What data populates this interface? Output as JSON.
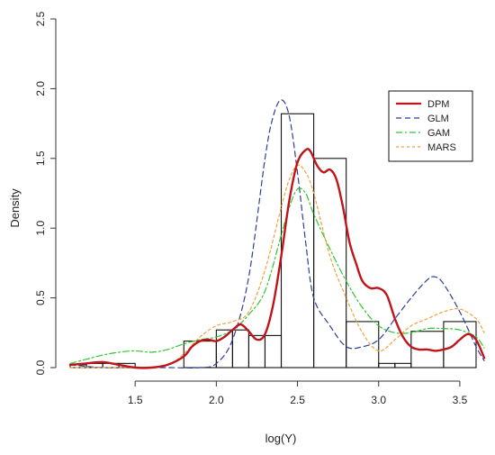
{
  "chart_data": {
    "type": "histogram-with-density-lines",
    "xlabel": "log(Y)",
    "ylabel": "Density",
    "xlim": [
      1.1,
      3.65
    ],
    "ylim": [
      0,
      2.5
    ],
    "x_ticks": [
      1.5,
      2.0,
      2.5,
      3.0,
      3.5
    ],
    "y_ticks": [
      0.0,
      0.5,
      1.0,
      1.5,
      2.0,
      2.5
    ],
    "x_tick_labels": [
      "1.5",
      "2.0",
      "2.5",
      "3.0",
      "3.5"
    ],
    "y_tick_labels": [
      "0.0",
      "0.5",
      "1.0",
      "1.5",
      "2.0",
      "2.5"
    ],
    "grid": false,
    "legend_position": "top-right",
    "histogram": {
      "bins": [
        {
          "x0": 1.1,
          "x1": 1.2,
          "height": 0.02
        },
        {
          "x0": 1.2,
          "x1": 1.3,
          "height": 0.03
        },
        {
          "x0": 1.3,
          "x1": 1.4,
          "height": 0.03
        },
        {
          "x0": 1.4,
          "x1": 1.5,
          "height": 0.03
        },
        {
          "x0": 1.5,
          "x1": 1.6,
          "height": 0.0
        },
        {
          "x0": 1.6,
          "x1": 1.7,
          "height": 0.0
        },
        {
          "x0": 1.7,
          "x1": 1.8,
          "height": 0.0
        },
        {
          "x0": 1.8,
          "x1": 2.0,
          "height": 0.19
        },
        {
          "x0": 2.0,
          "x1": 2.1,
          "height": 0.27
        },
        {
          "x0": 2.1,
          "x1": 2.2,
          "height": 0.27
        },
        {
          "x0": 2.2,
          "x1": 2.3,
          "height": 0.23
        },
        {
          "x0": 2.3,
          "x1": 2.4,
          "height": 0.23
        },
        {
          "x0": 2.4,
          "x1": 2.6,
          "height": 1.82
        },
        {
          "x0": 2.6,
          "x1": 2.8,
          "height": 1.5
        },
        {
          "x0": 2.8,
          "x1": 3.0,
          "height": 0.33
        },
        {
          "x0": 3.0,
          "x1": 3.1,
          "height": 0.03
        },
        {
          "x0": 3.1,
          "x1": 3.2,
          "height": 0.03
        },
        {
          "x0": 3.2,
          "x1": 3.4,
          "height": 0.26
        },
        {
          "x0": 3.4,
          "x1": 3.6,
          "height": 0.33
        }
      ]
    },
    "series": [
      {
        "name": "DPM",
        "color": "#c0141b",
        "dash": "solid",
        "width": 2.4,
        "x": [
          1.1,
          1.2,
          1.3,
          1.4,
          1.5,
          1.6,
          1.7,
          1.8,
          1.85,
          1.9,
          1.95,
          2.0,
          2.05,
          2.1,
          2.15,
          2.2,
          2.25,
          2.3,
          2.35,
          2.4,
          2.45,
          2.5,
          2.55,
          2.58,
          2.62,
          2.66,
          2.7,
          2.74,
          2.78,
          2.82,
          2.86,
          2.9,
          2.95,
          3.0,
          3.05,
          3.1,
          3.15,
          3.2,
          3.25,
          3.3,
          3.35,
          3.4,
          3.45,
          3.5,
          3.55,
          3.6,
          3.65
        ],
        "y": [
          0.02,
          0.03,
          0.04,
          0.02,
          0.0,
          0.0,
          0.02,
          0.08,
          0.15,
          0.19,
          0.2,
          0.19,
          0.22,
          0.27,
          0.31,
          0.26,
          0.2,
          0.24,
          0.45,
          0.8,
          1.2,
          1.47,
          1.56,
          1.55,
          1.45,
          1.4,
          1.42,
          1.35,
          1.15,
          0.9,
          0.75,
          0.62,
          0.57,
          0.57,
          0.52,
          0.35,
          0.22,
          0.15,
          0.13,
          0.13,
          0.12,
          0.13,
          0.15,
          0.2,
          0.24,
          0.2,
          0.07
        ]
      },
      {
        "name": "GLM",
        "color": "#2f3d9c",
        "dash": "6,4",
        "width": 1.2,
        "x": [
          1.1,
          1.3,
          1.5,
          1.7,
          1.9,
          2.0,
          2.1,
          2.2,
          2.3,
          2.35,
          2.4,
          2.45,
          2.5,
          2.55,
          2.6,
          2.7,
          2.8,
          2.9,
          3.0,
          3.1,
          3.2,
          3.3,
          3.35,
          3.4,
          3.5,
          3.6,
          3.65
        ],
        "y": [
          0.02,
          0.0,
          0.0,
          0.0,
          0.0,
          0.03,
          0.2,
          0.65,
          1.5,
          1.8,
          1.92,
          1.8,
          1.4,
          0.9,
          0.5,
          0.3,
          0.15,
          0.15,
          0.2,
          0.35,
          0.5,
          0.63,
          0.65,
          0.6,
          0.4,
          0.15,
          0.05
        ]
      },
      {
        "name": "GAM",
        "color": "#2ec82e",
        "dash": "7,3,2,3",
        "width": 1.2,
        "x": [
          1.1,
          1.2,
          1.3,
          1.4,
          1.5,
          1.6,
          1.7,
          1.8,
          1.9,
          2.0,
          2.1,
          2.2,
          2.3,
          2.4,
          2.45,
          2.5,
          2.55,
          2.6,
          2.7,
          2.8,
          2.9,
          3.0,
          3.1,
          3.2,
          3.3,
          3.4,
          3.5,
          3.6,
          3.65
        ],
        "y": [
          0.03,
          0.06,
          0.09,
          0.11,
          0.12,
          0.11,
          0.13,
          0.17,
          0.2,
          0.22,
          0.27,
          0.38,
          0.55,
          0.95,
          1.15,
          1.28,
          1.25,
          1.1,
          0.85,
          0.62,
          0.43,
          0.3,
          0.25,
          0.25,
          0.28,
          0.28,
          0.27,
          0.22,
          0.14
        ]
      },
      {
        "name": "MARS",
        "color": "#f0a23a",
        "dash": "3,3",
        "width": 1.2,
        "x": [
          1.1,
          1.3,
          1.5,
          1.7,
          1.8,
          1.9,
          2.0,
          2.1,
          2.2,
          2.3,
          2.4,
          2.45,
          2.5,
          2.55,
          2.6,
          2.7,
          2.8,
          2.9,
          3.0,
          3.1,
          3.2,
          3.3,
          3.4,
          3.5,
          3.6,
          3.65
        ],
        "y": [
          0.0,
          0.0,
          0.0,
          0.02,
          0.1,
          0.22,
          0.3,
          0.33,
          0.4,
          0.7,
          1.15,
          1.35,
          1.45,
          1.4,
          1.25,
          0.8,
          0.5,
          0.25,
          0.12,
          0.2,
          0.3,
          0.35,
          0.4,
          0.42,
          0.35,
          0.25
        ]
      }
    ]
  }
}
